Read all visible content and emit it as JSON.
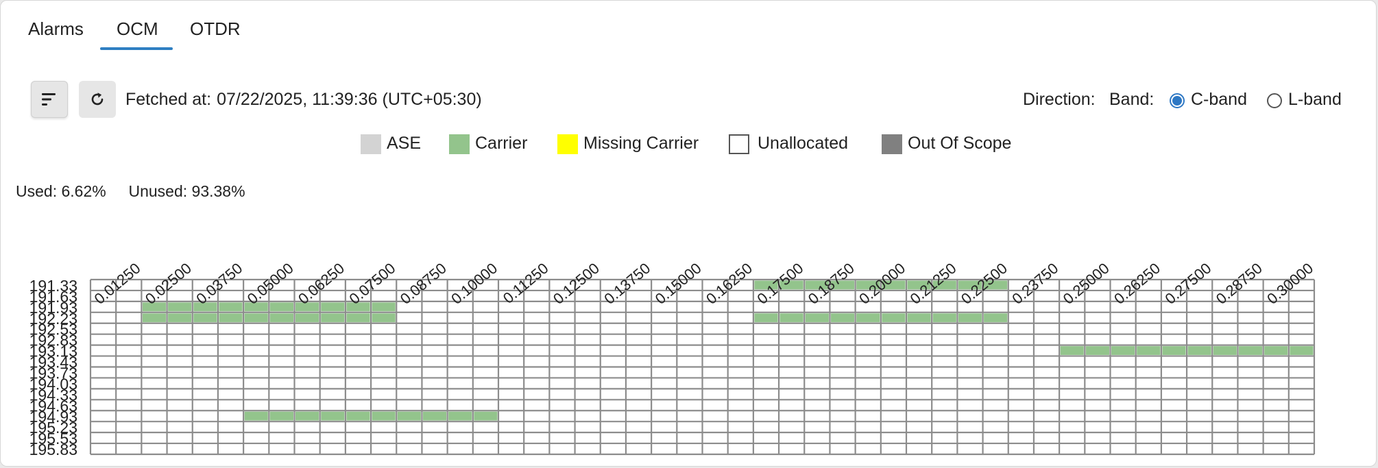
{
  "tabs": [
    {
      "label": "Alarms",
      "active": false
    },
    {
      "label": "OCM",
      "active": true
    },
    {
      "label": "OTDR",
      "active": false
    }
  ],
  "toolbar": {
    "sort_icon": "sort-lines-icon",
    "refresh_icon": "refresh-icon",
    "fetched_label": "Fetched at:",
    "fetched_value": "07/22/2025, 11:39:36 (UTC+05:30)"
  },
  "direction": {
    "label": "Direction:",
    "band_label": "Band:",
    "options": [
      {
        "label": "C-band",
        "selected": true
      },
      {
        "label": "L-band",
        "selected": false
      }
    ]
  },
  "legend": [
    {
      "label": "ASE",
      "color": "#d3d3d3"
    },
    {
      "label": "Carrier",
      "color": "#93c48c"
    },
    {
      "label": "Missing Carrier",
      "color": "#ffff00"
    },
    {
      "label": "Unallocated",
      "color": "#ffffff"
    },
    {
      "label": "Out Of Scope",
      "color": "#808080"
    }
  ],
  "usage": {
    "used_label": "Used:",
    "used_value": "6.62%",
    "unused_label": "Unused:",
    "unused_value": "93.38%"
  },
  "chart_data": {
    "type": "heatmap",
    "x_tick_labels": [
      "0.01250",
      "0.02500",
      "0.03750",
      "0.05000",
      "0.06250",
      "0.07500",
      "0.08750",
      "0.10000",
      "0.11250",
      "0.12500",
      "0.13750",
      "0.15000",
      "0.16250",
      "0.17500",
      "0.18750",
      "0.20000",
      "0.21250",
      "0.22500",
      "0.23750",
      "0.25000",
      "0.26250",
      "0.27500",
      "0.28750",
      "0.30000"
    ],
    "y_tick_labels": [
      "191.33",
      "191.63",
      "191.93",
      "192.23",
      "192.53",
      "192.83",
      "193.13",
      "193.43",
      "193.73",
      "194.03",
      "194.33",
      "194.63",
      "194.93",
      "195.23",
      "195.53",
      "195.83"
    ],
    "columns": 48,
    "rows": 16,
    "cell_color": "#ffffff",
    "grid_color": "#8c8c8c",
    "carrier_color": "#93c48c",
    "carriers": [
      {
        "row": 0,
        "start_col": 26,
        "end_col": 35
      },
      {
        "row": 2,
        "start_col": 2,
        "end_col": 11
      },
      {
        "row": 3,
        "start_col": 2,
        "end_col": 11
      },
      {
        "row": 3,
        "start_col": 26,
        "end_col": 35
      },
      {
        "row": 6,
        "start_col": 38,
        "end_col": 47
      },
      {
        "row": 12,
        "start_col": 6,
        "end_col": 15
      }
    ]
  }
}
